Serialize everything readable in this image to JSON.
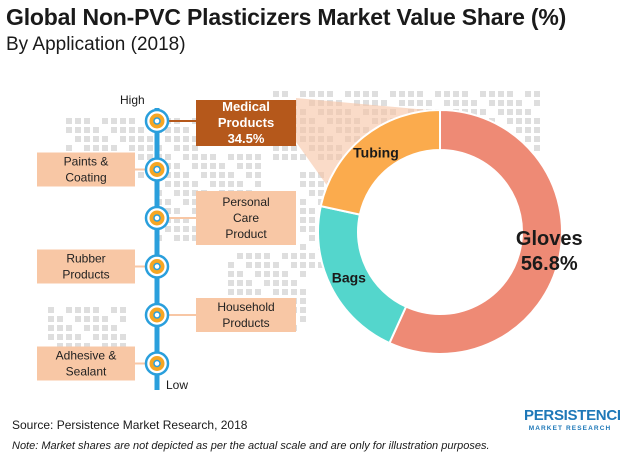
{
  "title": "Global Non-PVC Plasticizers Market Value Share (%)",
  "subtitle": "By Application  (2018)",
  "scale": {
    "high_label": "High",
    "low_label": "Low"
  },
  "applications": [
    {
      "lines": [
        "Medical",
        "Products"
      ],
      "value_label": "34.5%",
      "side": "right",
      "highlight": true
    },
    {
      "lines": [
        "Paints &",
        "Coating"
      ],
      "side": "left"
    },
    {
      "lines": [
        "Personal",
        "Care",
        "Product"
      ],
      "side": "right"
    },
    {
      "lines": [
        "Rubber",
        "Products"
      ],
      "side": "left"
    },
    {
      "lines": [
        "Household",
        "Products"
      ],
      "side": "right"
    },
    {
      "lines": [
        "Adhesive &",
        "Sealant"
      ],
      "side": "left"
    }
  ],
  "chart_data": {
    "type": "pie",
    "variant": "donut",
    "parent_category": "Medical Products",
    "slices": [
      {
        "label": "Gloves",
        "value": 56.8,
        "value_label": "56.8%",
        "color": "#ee8a75"
      },
      {
        "label": "Bags",
        "value": 21.6,
        "color": "#54d6cc"
      },
      {
        "label": "Tubing",
        "value": 21.6,
        "color": "#fbab4d"
      }
    ]
  },
  "colors": {
    "axis_line": "#2a9fdc",
    "node_fill": "#f6a623",
    "node_stroke": "#2a9fdc",
    "box_fill": "#f8c7a5",
    "highlight_box_fill": "#b5581b",
    "highlight_text": "#ffffff",
    "connector_fill": "#f7c3a4",
    "map_dots": "#dedede"
  },
  "footer": {
    "source": "Source: Persistence Market Research, 2018",
    "note": "Note: Market shares are not depicted as per the actual scale and are only for illustration purposes."
  },
  "brand": {
    "name": "PERSISTENCE",
    "tagline": "MARKET RESEARCH"
  }
}
